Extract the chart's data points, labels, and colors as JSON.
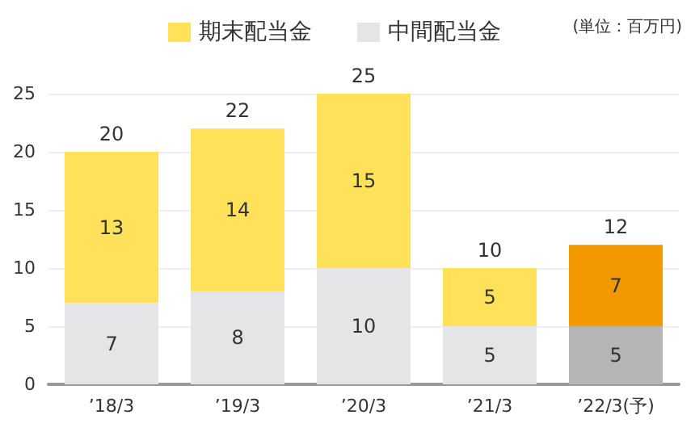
{
  "chart_data": {
    "type": "bar",
    "stacked": true,
    "categories": [
      "’18/3",
      "’19/3",
      "’20/3",
      "’21/3",
      "’22/3(予)"
    ],
    "series": [
      {
        "name": "中間配当金",
        "color": "#e5e5e8",
        "colors": [
          "#e5e5e8",
          "#e5e5e8",
          "#e5e5e8",
          "#e5e5e8",
          "#b5b5b5"
        ],
        "values": [
          7,
          8,
          10,
          5,
          5
        ]
      },
      {
        "name": "期末配当金",
        "color": "#ffe15a",
        "colors": [
          "#ffe15a",
          "#ffe15a",
          "#ffe15a",
          "#ffe15a",
          "#f39800"
        ],
        "values": [
          13,
          14,
          15,
          5,
          7
        ]
      }
    ],
    "totals": [
      "20",
      "22",
      "25",
      "10",
      "12"
    ],
    "data_labels": true,
    "ylim": [
      0,
      25
    ],
    "yticks": [
      0,
      5,
      10,
      15,
      20,
      25
    ],
    "grid": "y",
    "legend": "top right",
    "annotations": [
      "(単位：百万円)"
    ]
  }
}
